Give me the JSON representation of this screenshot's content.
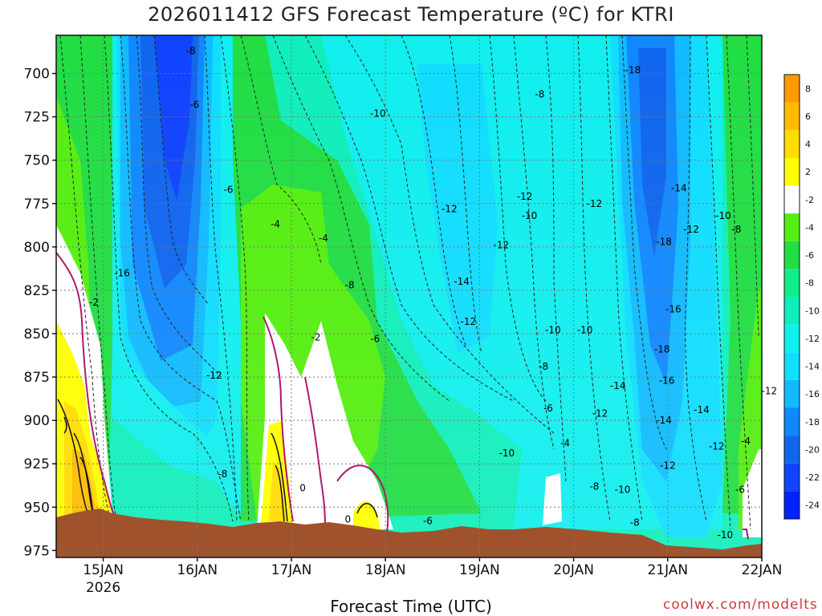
{
  "title": "2026011412 GFS Forecast Temperature (ºC) for KTRI",
  "credit": "coolwx.com/modelts",
  "chart_data": {
    "type": "heatmap",
    "title": "2026011412 GFS Forecast Temperature (ºC) for KTRI",
    "xlabel": "Forecast Time (UTC)",
    "ylabel": "",
    "y_reversed": true,
    "y_levels": [
      700,
      725,
      750,
      775,
      800,
      825,
      850,
      875,
      900,
      925,
      950,
      975
    ],
    "x_ticks": [
      {
        "label": "15JAN",
        "sub": "2026",
        "day": 15
      },
      {
        "label": "16JAN",
        "sub": "",
        "day": 16
      },
      {
        "label": "17JAN",
        "sub": "",
        "day": 17
      },
      {
        "label": "18JAN",
        "sub": "",
        "day": 18
      },
      {
        "label": "19JAN",
        "sub": "",
        "day": 19
      },
      {
        "label": "20JAN",
        "sub": "",
        "day": 20
      },
      {
        "label": "21JAN",
        "sub": "",
        "day": 21
      },
      {
        "label": "22JAN",
        "sub": "",
        "day": 22
      }
    ],
    "xlim_days": [
      14.5,
      22.0
    ],
    "ylim_hpa": [
      678,
      979
    ],
    "grid": true,
    "colorbar": {
      "placement": "right",
      "levels": [
        8,
        6,
        4,
        2,
        -2,
        -4,
        -6,
        -8,
        -10,
        -12,
        -14,
        -16,
        -18,
        -20,
        -22,
        -24
      ],
      "colors": [
        "#ff9900",
        "#ffbb00",
        "#ffdd00",
        "#ffff00",
        "#ffffff",
        "#55ee11",
        "#22dd44",
        "#11ee88",
        "#11eebb",
        "#11eeee",
        "#11ddff",
        "#11bbff",
        "#1188ff",
        "#1166ee",
        "#1144ff",
        "#0022ff"
      ]
    },
    "contour_labels": [
      {
        "text": "-8",
        "day": 15.93,
        "hpa": 687
      },
      {
        "text": "-18",
        "day": 20.63,
        "hpa": 698
      },
      {
        "text": "-8",
        "day": 19.64,
        "hpa": 712
      },
      {
        "text": "-6",
        "day": 15.97,
        "hpa": 718
      },
      {
        "text": "-10",
        "day": 17.92,
        "hpa": 723
      },
      {
        "text": "-14",
        "day": 21.12,
        "hpa": 766
      },
      {
        "text": "-6",
        "day": 16.33,
        "hpa": 767
      },
      {
        "text": "-12",
        "day": 19.48,
        "hpa": 771
      },
      {
        "text": "-12",
        "day": 20.22,
        "hpa": 775
      },
      {
        "text": "-12",
        "day": 18.68,
        "hpa": 778
      },
      {
        "text": "-10",
        "day": 19.53,
        "hpa": 782
      },
      {
        "text": "-10",
        "day": 21.59,
        "hpa": 782
      },
      {
        "text": "-4",
        "day": 16.83,
        "hpa": 787
      },
      {
        "text": "-12",
        "day": 21.25,
        "hpa": 790
      },
      {
        "text": "-8",
        "day": 21.73,
        "hpa": 790
      },
      {
        "text": "-4",
        "day": 17.34,
        "hpa": 795
      },
      {
        "text": "-18",
        "day": 20.96,
        "hpa": 797
      },
      {
        "text": "-12",
        "day": 19.23,
        "hpa": 799
      },
      {
        "text": "-16",
        "day": 15.2,
        "hpa": 815
      },
      {
        "text": "-14",
        "day": 18.81,
        "hpa": 820
      },
      {
        "text": "-8",
        "day": 17.62,
        "hpa": 822
      },
      {
        "text": "-2",
        "day": 14.9,
        "hpa": 832
      },
      {
        "text": "-16",
        "day": 21.06,
        "hpa": 836
      },
      {
        "text": "-12",
        "day": 18.88,
        "hpa": 843
      },
      {
        "text": "-10",
        "day": 19.78,
        "hpa": 848
      },
      {
        "text": "-10",
        "day": 20.12,
        "hpa": 848
      },
      {
        "text": "-2",
        "day": 17.26,
        "hpa": 852
      },
      {
        "text": "-6",
        "day": 17.89,
        "hpa": 853
      },
      {
        "text": "-18",
        "day": 20.94,
        "hpa": 859
      },
      {
        "text": "-8",
        "day": 19.68,
        "hpa": 869
      },
      {
        "text": "-12",
        "day": 16.18,
        "hpa": 874
      },
      {
        "text": "-16",
        "day": 20.99,
        "hpa": 877
      },
      {
        "text": "-14",
        "day": 20.47,
        "hpa": 880
      },
      {
        "text": "-12",
        "day": 22.08,
        "hpa": 883
      },
      {
        "text": "-6",
        "day": 19.73,
        "hpa": 893
      },
      {
        "text": "-12",
        "day": 20.28,
        "hpa": 896
      },
      {
        "text": "-14",
        "day": 21.36,
        "hpa": 894
      },
      {
        "text": "-14",
        "day": 20.96,
        "hpa": 900
      },
      {
        "text": "-4",
        "day": 19.91,
        "hpa": 913
      },
      {
        "text": "-12",
        "day": 21.52,
        "hpa": 915
      },
      {
        "text": "-4",
        "day": 21.83,
        "hpa": 912
      },
      {
        "text": "-10",
        "day": 19.29,
        "hpa": 919
      },
      {
        "text": "-12",
        "day": 21.0,
        "hpa": 926
      },
      {
        "text": "-8",
        "day": 16.27,
        "hpa": 931
      },
      {
        "text": "-8",
        "day": 20.22,
        "hpa": 938
      },
      {
        "text": "0",
        "day": 17.12,
        "hpa": 939
      },
      {
        "text": "-10",
        "day": 20.52,
        "hpa": 940
      },
      {
        "text": "-6",
        "day": 21.77,
        "hpa": 940
      },
      {
        "text": "0",
        "day": 17.6,
        "hpa": 957
      },
      {
        "text": "-6",
        "day": 18.45,
        "hpa": 958
      },
      {
        "text": "-8",
        "day": 20.65,
        "hpa": 959
      },
      {
        "text": "-10",
        "day": 21.61,
        "hpa": 966
      }
    ]
  }
}
